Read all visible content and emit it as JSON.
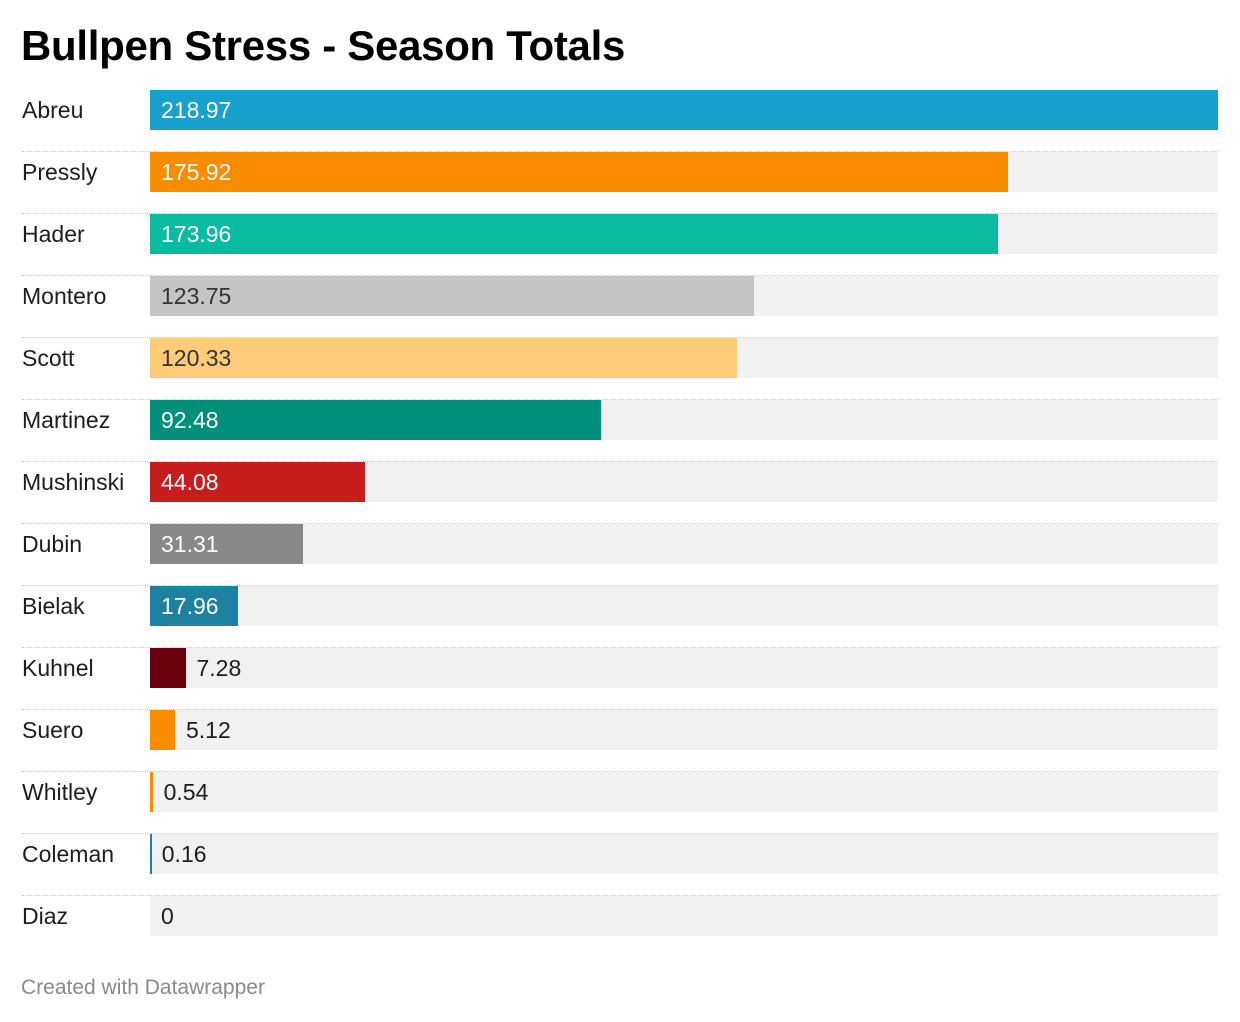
{
  "title": "Bullpen Stress - Season Totals",
  "footer": "Created with Datawrapper",
  "chart_data": {
    "type": "bar",
    "orientation": "horizontal",
    "title": "Bullpen Stress - Season Totals",
    "xlabel": "",
    "ylabel": "",
    "xlim": [
      0,
      218.97
    ],
    "grid": false,
    "legend": "none",
    "categories": [
      "Abreu",
      "Pressly",
      "Hader",
      "Montero",
      "Scott",
      "Martinez",
      "Mushinski",
      "Dubin",
      "Bielak",
      "Kuhnel",
      "Suero",
      "Whitley",
      "Coleman",
      "Diaz"
    ],
    "values": [
      218.97,
      175.92,
      173.96,
      123.75,
      120.33,
      92.48,
      44.08,
      31.31,
      17.96,
      7.28,
      5.12,
      0.54,
      0.16,
      0
    ],
    "value_labels": [
      "218.97",
      "175.92",
      "173.96",
      "123.75",
      "120.33",
      "92.48",
      "44.08",
      "31.31",
      "17.96",
      "7.28",
      "5.12",
      "0.54",
      "0.16",
      "0"
    ],
    "colors": [
      "#18a1cd",
      "#fa8c00",
      "#09bb9f",
      "#c4c4c4",
      "#fecc78",
      "#008f7a",
      "#c71e1d",
      "#888888",
      "#1d81a2",
      "#6b000e",
      "#fa8c00",
      "#fa8c00",
      "#1d81a2",
      "#c4c4c4"
    ],
    "track_color": "#f1f1f1"
  }
}
